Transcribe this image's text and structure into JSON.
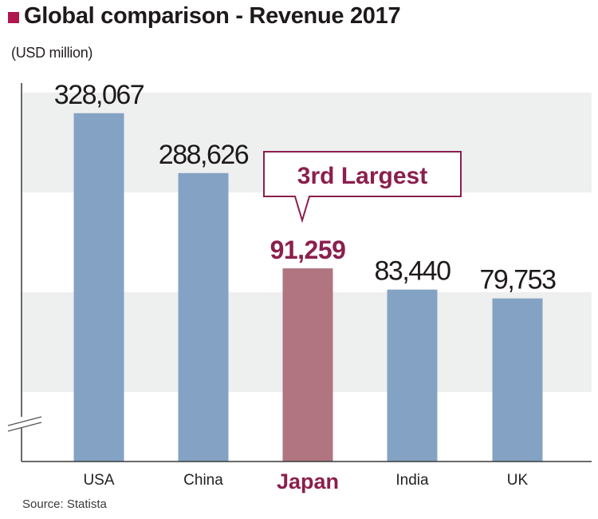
{
  "chart_data": {
    "type": "bar",
    "title": "Global comparison - Revenue 2017",
    "unit_label": "(USD million)",
    "xlabel": "",
    "ylabel": "",
    "categories": [
      "USA",
      "China",
      "Japan",
      "India",
      "UK"
    ],
    "values": [
      328067,
      288626,
      91259,
      83440,
      79753
    ],
    "value_labels": [
      "328,067",
      "288,626",
      "91,259",
      "83,440",
      "79,753"
    ],
    "highlight_category": "Japan",
    "annotation": "3rd Largest",
    "axis_break": true,
    "grid": "alternating horizontal bands",
    "source": "Source: Statista",
    "colors": {
      "bar": "#84a3c4",
      "highlight_bar": "#b07580",
      "highlight_text": "#8b1f4d",
      "title_marker": "#b0174f",
      "band": "#eeefef"
    }
  }
}
